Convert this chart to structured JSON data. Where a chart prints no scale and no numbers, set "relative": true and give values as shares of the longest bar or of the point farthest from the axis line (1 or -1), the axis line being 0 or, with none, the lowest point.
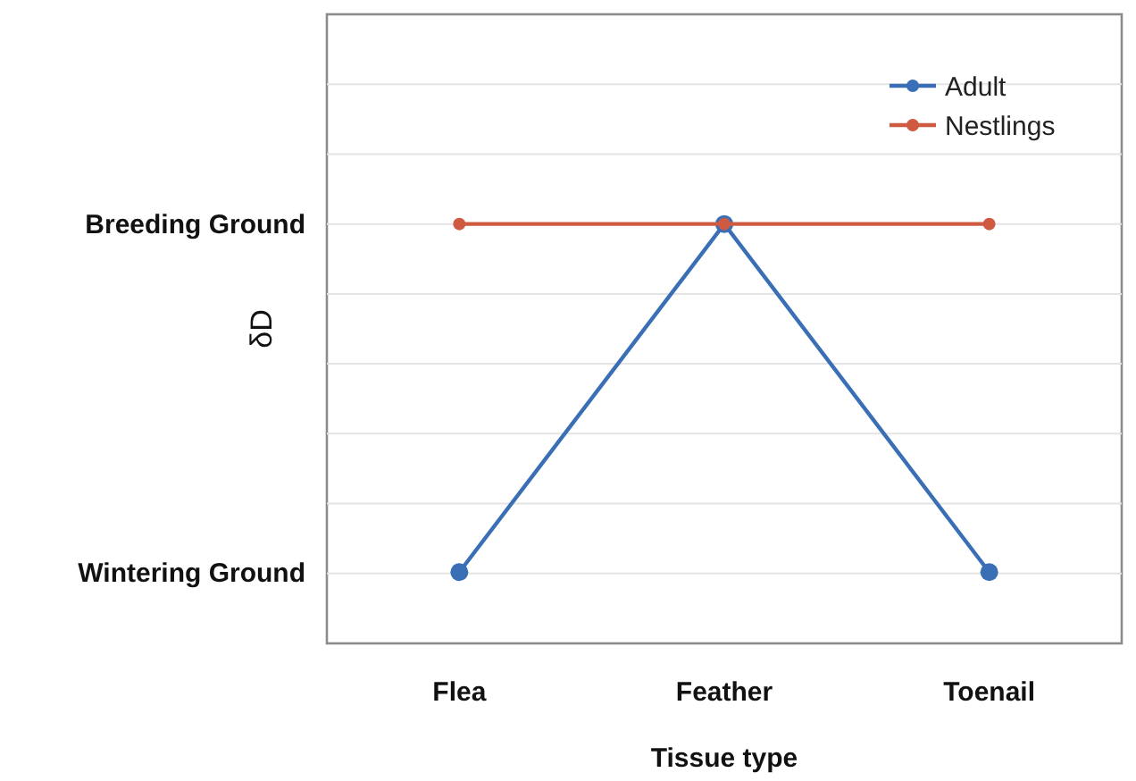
{
  "chart_data": {
    "type": "line",
    "xlabel": "Tissue type",
    "ylabel": "δD",
    "relative": true,
    "categories": [
      "Flea",
      "Feather",
      "Toenail"
    ],
    "series": [
      {
        "name": "Adult",
        "color": "#3a6fb5",
        "values": [
          0.17,
          1,
          0.17
        ]
      },
      {
        "name": "Nestlings",
        "color": "#cf5a42",
        "values": [
          1,
          1,
          1
        ]
      }
    ],
    "annotations": [
      "Breeding Ground",
      "Wintering Ground"
    ],
    "grid": "y",
    "legend": "top right",
    "marker": "circle",
    "line_style": "solid"
  }
}
